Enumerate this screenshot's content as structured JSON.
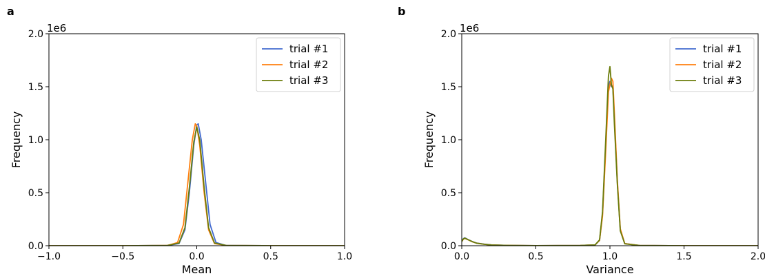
{
  "chart_data": [
    {
      "type": "line",
      "panel_label": "a",
      "xlabel": "Mean",
      "ylabel": "Frequency",
      "y_offset_label": "1e6",
      "xlim": [
        -1.0,
        1.0
      ],
      "ylim": [
        0,
        2000000
      ],
      "x_ticks": [
        -1.0,
        -0.5,
        0.0,
        0.5,
        1.0
      ],
      "x_tick_labels": [
        "−1.0",
        "−0.5",
        "0.0",
        "0.5",
        "1.0"
      ],
      "y_ticks": [
        0,
        500000,
        1000000,
        1500000,
        2000000
      ],
      "y_tick_labels": [
        "0.0",
        "0.5",
        "1.0",
        "1.5",
        "2.0"
      ],
      "legend_position": "top-right",
      "grid": false,
      "series": [
        {
          "name": "trial #1",
          "color": "#4169cf",
          "x": [
            -1.0,
            -0.5,
            -0.2,
            -0.12,
            -0.08,
            -0.05,
            -0.02,
            0.0,
            0.01,
            0.03,
            0.06,
            0.09,
            0.13,
            0.2,
            0.5,
            1.0
          ],
          "y": [
            0,
            0,
            2000,
            20000,
            150000,
            500000,
            950000,
            1140000,
            1150000,
            1000000,
            600000,
            200000,
            30000,
            2000,
            0,
            0
          ]
        },
        {
          "name": "trial #2",
          "color": "#ff7f0e",
          "x": [
            -1.0,
            -0.5,
            -0.2,
            -0.13,
            -0.09,
            -0.06,
            -0.03,
            -0.01,
            0.0,
            0.02,
            0.05,
            0.08,
            0.12,
            0.2,
            0.5,
            1.0
          ],
          "y": [
            0,
            0,
            2000,
            30000,
            200000,
            600000,
            1000000,
            1150000,
            1130000,
            950000,
            500000,
            150000,
            20000,
            2000,
            0,
            0
          ]
        },
        {
          "name": "trial #3",
          "color": "#6b7d0c",
          "x": [
            -1.0,
            -0.5,
            -0.2,
            -0.12,
            -0.08,
            -0.05,
            -0.02,
            0.0,
            0.02,
            0.05,
            0.08,
            0.12,
            0.2,
            0.5,
            1.0
          ],
          "y": [
            0,
            0,
            2000,
            25000,
            170000,
            550000,
            980000,
            1120000,
            1000000,
            550000,
            170000,
            25000,
            2000,
            0,
            0
          ]
        }
      ]
    },
    {
      "type": "line",
      "panel_label": "b",
      "xlabel": "Variance",
      "ylabel": "Frequency",
      "y_offset_label": "1e6",
      "xlim": [
        0.0,
        2.0
      ],
      "ylim": [
        0,
        2000000
      ],
      "x_ticks": [
        0.0,
        0.5,
        1.0,
        1.5,
        2.0
      ],
      "x_tick_labels": [
        "0.0",
        "0.5",
        "1.0",
        "1.5",
        "2.0"
      ],
      "y_ticks": [
        0,
        500000,
        1000000,
        1500000,
        2000000
      ],
      "y_tick_labels": [
        "0.0",
        "0.5",
        "1.0",
        "1.5",
        "2.0"
      ],
      "legend_position": "top-right",
      "grid": false,
      "series": [
        {
          "name": "trial #1",
          "color": "#4169cf",
          "x": [
            0.0,
            0.01,
            0.02,
            0.04,
            0.07,
            0.1,
            0.15,
            0.2,
            0.3,
            0.5,
            0.8,
            0.9,
            0.93,
            0.95,
            0.97,
            0.99,
            1.0,
            1.01,
            1.02,
            1.03,
            1.05,
            1.07,
            1.1,
            1.2,
            1.5,
            2.0
          ],
          "y": [
            40000,
            65000,
            75000,
            60000,
            40000,
            25000,
            15000,
            8000,
            3000,
            1000,
            2000,
            8000,
            50000,
            300000,
            900000,
            1500000,
            1550000,
            1500000,
            1500000,
            1200000,
            600000,
            150000,
            20000,
            2000,
            0,
            0
          ]
        },
        {
          "name": "trial #2",
          "color": "#ff7f0e",
          "x": [
            0.0,
            0.01,
            0.02,
            0.04,
            0.07,
            0.1,
            0.15,
            0.2,
            0.3,
            0.5,
            0.8,
            0.9,
            0.93,
            0.95,
            0.97,
            0.99,
            1.0,
            1.01,
            1.02,
            1.03,
            1.05,
            1.07,
            1.1,
            1.2,
            1.5,
            2.0
          ],
          "y": [
            40000,
            60000,
            70000,
            58000,
            38000,
            24000,
            14000,
            7000,
            3000,
            1000,
            2000,
            8000,
            50000,
            280000,
            850000,
            1450000,
            1520000,
            1580000,
            1550000,
            1250000,
            620000,
            160000,
            20000,
            2000,
            0,
            0
          ]
        },
        {
          "name": "trial #3",
          "color": "#6b7d0c",
          "x": [
            0.0,
            0.01,
            0.02,
            0.04,
            0.07,
            0.1,
            0.15,
            0.2,
            0.3,
            0.5,
            0.8,
            0.9,
            0.93,
            0.95,
            0.97,
            0.99,
            1.0,
            1.01,
            1.02,
            1.03,
            1.05,
            1.07,
            1.1,
            1.2,
            1.5,
            2.0
          ],
          "y": [
            40000,
            62000,
            72000,
            59000,
            39000,
            24000,
            14000,
            7000,
            3000,
            1000,
            2000,
            8000,
            55000,
            320000,
            950000,
            1600000,
            1690000,
            1520000,
            1480000,
            1150000,
            580000,
            140000,
            18000,
            2000,
            0,
            0
          ]
        }
      ]
    }
  ]
}
